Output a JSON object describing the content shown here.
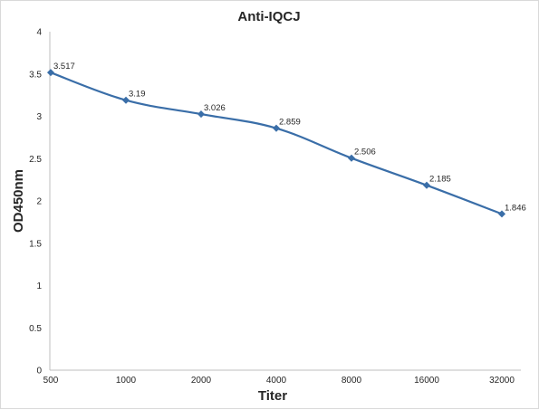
{
  "chart_data": {
    "type": "line",
    "title": "Anti-IQCJ",
    "xlabel": "Titer",
    "ylabel": "OD450nm",
    "categories": [
      "500",
      "1000",
      "2000",
      "4000",
      "8000",
      "16000",
      "32000"
    ],
    "series": [
      {
        "values": [
          3.517,
          3.19,
          3.026,
          2.859,
          2.506,
          2.185,
          1.846
        ],
        "labels": [
          "3.517",
          "3.19",
          "3.026",
          "2.859",
          "2.506",
          "2.185",
          "1.846"
        ]
      }
    ],
    "ylim": [
      0,
      4
    ],
    "yticks": [
      "0",
      "0.5",
      "1",
      "1.5",
      "2",
      "2.5",
      "3",
      "3.5",
      "4"
    ],
    "grid": false,
    "legend": "none",
    "line_color": "#3a6ea8",
    "marker": "diamond"
  }
}
